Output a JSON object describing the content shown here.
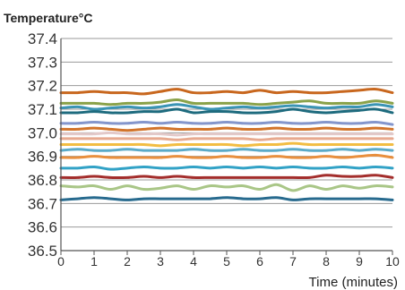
{
  "chart_data": {
    "type": "line",
    "title": "",
    "ylabel": "Temperature°C",
    "xlabel": "Time (minutes)",
    "xlim": [
      0,
      10
    ],
    "ylim": [
      36.5,
      37.4
    ],
    "xticks": [
      "0",
      "1",
      "2",
      "3",
      "4",
      "5",
      "6",
      "7",
      "8",
      "9",
      "10"
    ],
    "yticks": [
      "36.5",
      "36.6",
      "36.7",
      "36.8",
      "36.9",
      "37.0",
      "37.1",
      "37.2",
      "37.3",
      "37.4"
    ],
    "grid": "horizontal",
    "x": [
      0,
      0.5,
      1,
      1.5,
      2,
      2.5,
      3,
      3.5,
      4,
      4.5,
      5,
      5.5,
      6,
      6.5,
      7,
      7.5,
      8,
      8.5,
      9,
      9.5,
      10
    ],
    "series": [
      {
        "color": "#c8671e",
        "values": [
          37.17,
          37.17,
          37.175,
          37.17,
          37.17,
          37.165,
          37.175,
          37.185,
          37.17,
          37.17,
          37.175,
          37.17,
          37.18,
          37.17,
          37.175,
          37.17,
          37.17,
          37.175,
          37.18,
          37.185,
          37.17
        ]
      },
      {
        "color": "#8aa24a",
        "values": [
          37.125,
          37.125,
          37.125,
          37.12,
          37.125,
          37.125,
          37.13,
          37.14,
          37.125,
          37.125,
          37.125,
          37.125,
          37.12,
          37.125,
          37.13,
          37.135,
          37.125,
          37.125,
          37.125,
          37.135,
          37.125
        ]
      },
      {
        "color": "#3a94b4",
        "values": [
          37.105,
          37.11,
          37.1,
          37.105,
          37.11,
          37.105,
          37.11,
          37.12,
          37.11,
          37.1,
          37.105,
          37.11,
          37.105,
          37.11,
          37.115,
          37.11,
          37.105,
          37.11,
          37.11,
          37.12,
          37.11
        ]
      },
      {
        "color": "#1e6b7e",
        "values": [
          37.085,
          37.085,
          37.09,
          37.085,
          37.085,
          37.09,
          37.09,
          37.1,
          37.085,
          37.09,
          37.09,
          37.085,
          37.085,
          37.09,
          37.1,
          37.09,
          37.085,
          37.09,
          37.095,
          37.1,
          37.085
        ]
      },
      {
        "color": "#8496cc",
        "values": [
          37.04,
          37.04,
          37.045,
          37.04,
          37.04,
          37.045,
          37.04,
          37.045,
          37.04,
          37.04,
          37.045,
          37.04,
          37.04,
          37.045,
          37.04,
          37.04,
          37.045,
          37.04,
          37.04,
          37.045,
          37.035
        ]
      },
      {
        "color": "#d2742b",
        "values": [
          37.015,
          37.015,
          37.02,
          37.015,
          37.01,
          37.015,
          37.02,
          37.015,
          37.015,
          37.015,
          37.02,
          37.015,
          37.015,
          37.02,
          37.015,
          37.015,
          37.02,
          37.015,
          37.015,
          37.02,
          37.015
        ]
      },
      {
        "color": "#e3c9c9",
        "values": [
          36.995,
          36.995,
          36.995,
          37.0,
          36.995,
          36.995,
          36.995,
          36.99,
          36.995,
          36.995,
          36.995,
          36.995,
          36.995,
          36.995,
          36.995,
          36.995,
          36.995,
          36.995,
          36.995,
          36.995,
          36.995
        ]
      },
      {
        "color": "#e7a98f",
        "values": [
          36.975,
          36.975,
          36.975,
          36.975,
          36.975,
          36.975,
          36.975,
          36.97,
          36.975,
          36.975,
          36.975,
          36.975,
          36.97,
          36.975,
          36.975,
          36.975,
          36.975,
          36.975,
          36.975,
          36.975,
          36.975
        ]
      },
      {
        "color": "#f2bd43",
        "values": [
          36.95,
          36.95,
          36.95,
          36.95,
          36.95,
          36.95,
          36.945,
          36.95,
          36.95,
          36.95,
          36.95,
          36.945,
          36.95,
          36.95,
          36.955,
          36.95,
          36.95,
          36.95,
          36.95,
          36.95,
          36.95
        ]
      },
      {
        "color": "#5aaac8",
        "values": [
          36.925,
          36.93,
          36.925,
          36.925,
          36.93,
          36.925,
          36.925,
          36.925,
          36.93,
          36.925,
          36.925,
          36.93,
          36.925,
          36.925,
          36.93,
          36.925,
          36.925,
          36.93,
          36.925,
          36.93,
          36.925
        ]
      },
      {
        "color": "#e88f3e",
        "values": [
          36.895,
          36.895,
          36.9,
          36.895,
          36.895,
          36.895,
          36.895,
          36.9,
          36.895,
          36.895,
          36.9,
          36.895,
          36.895,
          36.9,
          36.895,
          36.895,
          36.9,
          36.895,
          36.9,
          36.905,
          36.895
        ]
      },
      {
        "color": "#32a2c6",
        "values": [
          36.85,
          36.85,
          36.855,
          36.845,
          36.85,
          36.855,
          36.85,
          36.85,
          36.855,
          36.85,
          36.855,
          36.85,
          36.855,
          36.85,
          36.855,
          36.85,
          36.85,
          36.855,
          36.85,
          36.855,
          36.85
        ]
      },
      {
        "color": "#a32e2c",
        "values": [
          36.81,
          36.81,
          36.815,
          36.81,
          36.81,
          36.815,
          36.81,
          36.815,
          36.81,
          36.81,
          36.81,
          36.81,
          36.81,
          36.81,
          36.81,
          36.81,
          36.82,
          36.815,
          36.815,
          36.82,
          36.81
        ]
      },
      {
        "color": "#a9c687",
        "values": [
          36.775,
          36.77,
          36.775,
          36.76,
          36.775,
          36.76,
          36.765,
          36.775,
          36.76,
          36.775,
          36.77,
          36.775,
          36.76,
          36.78,
          36.755,
          36.775,
          36.76,
          36.775,
          36.765,
          36.775,
          36.77
        ]
      },
      {
        "color": "#276a8e",
        "values": [
          36.715,
          36.72,
          36.725,
          36.72,
          36.715,
          36.72,
          36.72,
          36.72,
          36.72,
          36.72,
          36.725,
          36.72,
          36.72,
          36.725,
          36.715,
          36.72,
          36.72,
          36.72,
          36.72,
          36.72,
          36.715
        ]
      }
    ]
  }
}
